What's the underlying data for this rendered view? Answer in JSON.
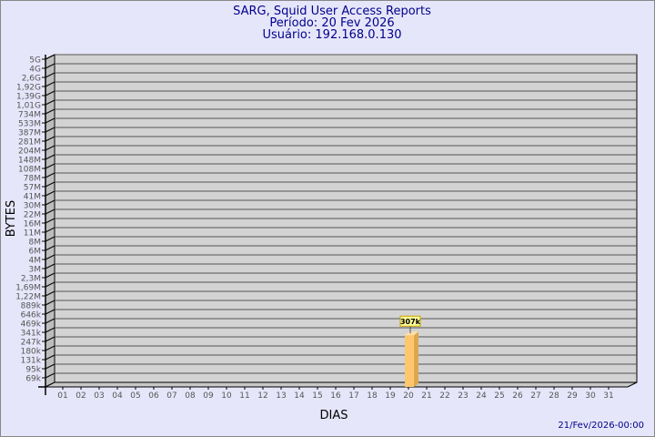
{
  "header": {
    "title": "SARG, Squid User Access Reports",
    "period": "Período: 20 Fev 2026",
    "user": "Usuário: 192.168.0.130"
  },
  "footer": {
    "timestamp": "21/Fev/2026-00:00"
  },
  "colors": {
    "background": "#e6e6fa",
    "plot": "#d3d3d3",
    "bar": "#ffc66e",
    "bar_side": "#dba84f",
    "title": "#00008b"
  },
  "chart_data": {
    "type": "bar",
    "title": "SARG, Squid User Access Reports",
    "xlabel": "DIAS",
    "ylabel": "BYTES",
    "y_scale": "log",
    "grid": true,
    "y_ticks": [
      "5G",
      "4G",
      "2,6G",
      "1,92G",
      "1,39G",
      "1,01G",
      "734M",
      "533M",
      "387M",
      "281M",
      "204M",
      "148M",
      "108M",
      "78M",
      "57M",
      "41M",
      "30M",
      "22M",
      "16M",
      "11M",
      "8M",
      "6M",
      "4M",
      "3M",
      "2,3M",
      "1,69M",
      "1,22M",
      "889k",
      "646k",
      "469k",
      "341k",
      "247k",
      "180k",
      "131k",
      "95k",
      "69k"
    ],
    "categories": [
      "01",
      "02",
      "03",
      "04",
      "05",
      "06",
      "07",
      "08",
      "09",
      "10",
      "11",
      "12",
      "13",
      "14",
      "15",
      "16",
      "17",
      "18",
      "19",
      "20",
      "21",
      "22",
      "23",
      "24",
      "25",
      "26",
      "27",
      "28",
      "29",
      "30",
      "31"
    ],
    "bars": [
      {
        "category": "20",
        "value": 307000,
        "label": "307k"
      }
    ]
  }
}
